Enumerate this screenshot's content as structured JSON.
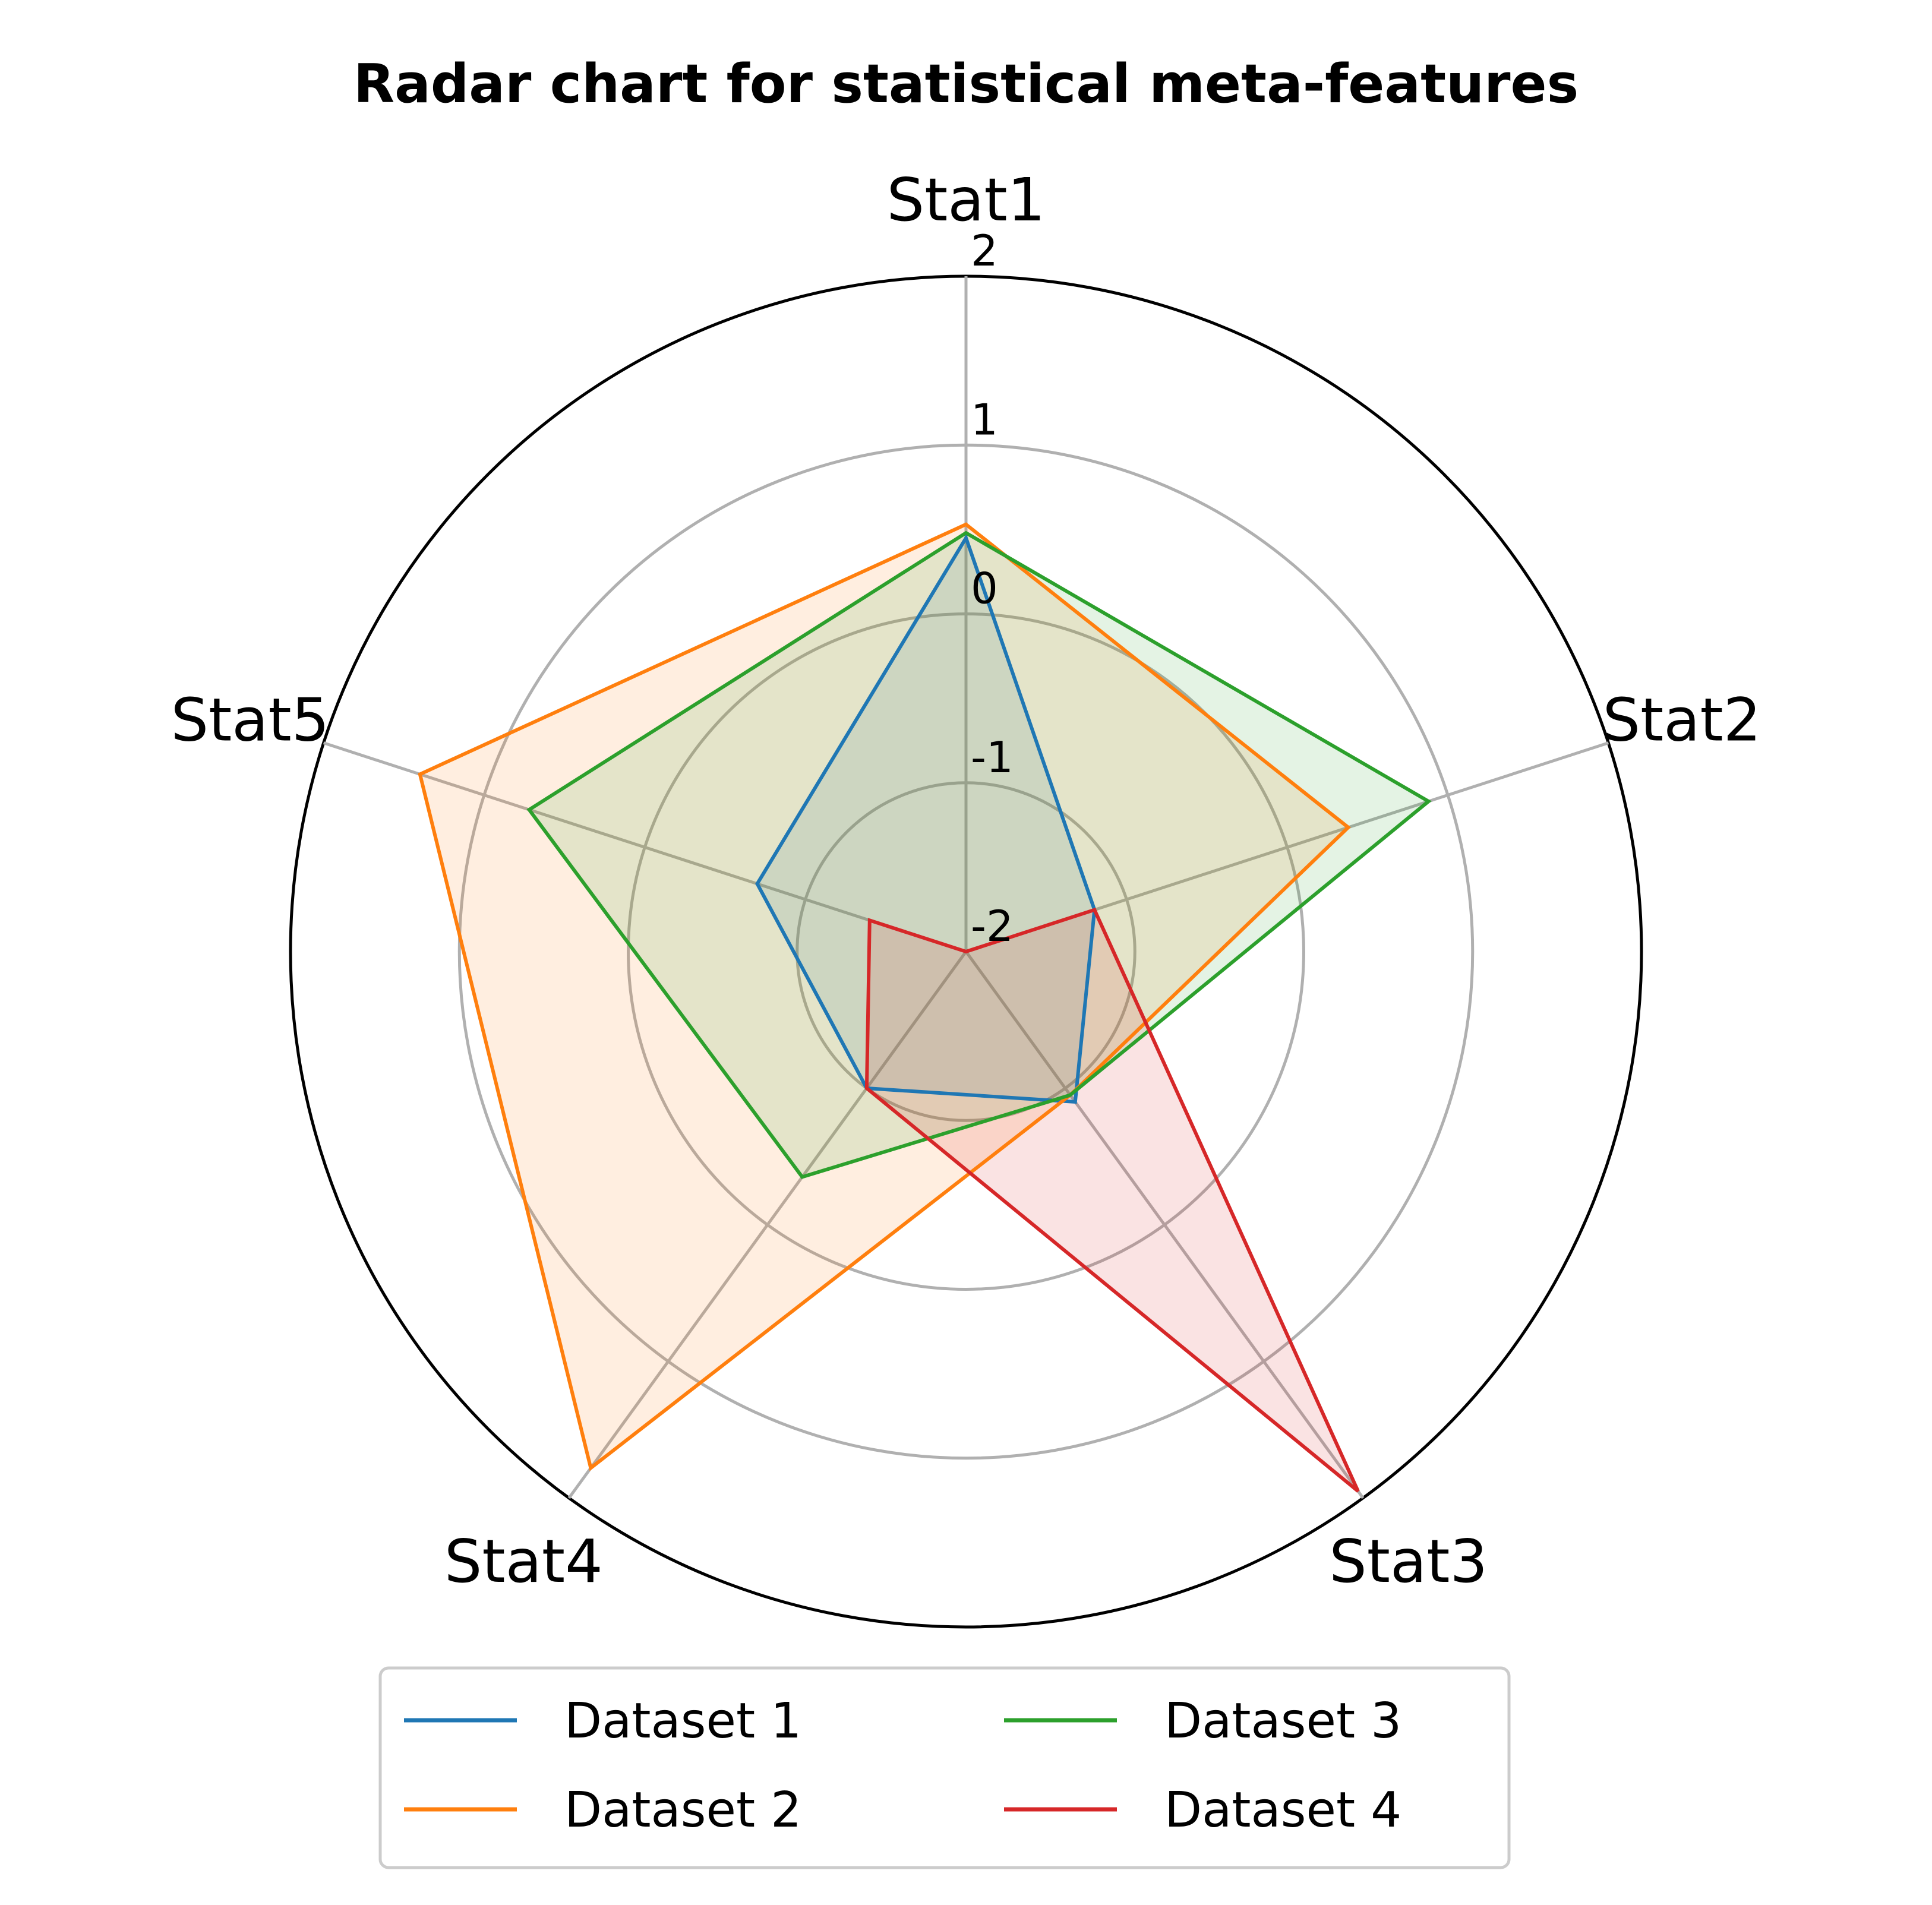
{
  "chart_data": {
    "type": "radar",
    "title": "Radar chart for statistical meta-features",
    "axes": [
      "Stat1",
      "Stat2",
      "Stat3",
      "Stat4",
      "Stat5"
    ],
    "rlim": [
      -2.0,
      2.0
    ],
    "rticks": [
      -2,
      -1,
      0,
      1,
      2
    ],
    "rtick_labels": [
      "-2",
      "-1",
      "0",
      "1",
      "2"
    ],
    "grid": true,
    "legend_position": "bottom-center",
    "legend_columns": 2,
    "series": [
      {
        "name": "Dataset 1",
        "color": "#1f77b4",
        "values": [
          0.45,
          -1.2,
          -0.9,
          -1.0,
          -0.7
        ]
      },
      {
        "name": "Dataset 2",
        "color": "#ff7f0e",
        "values": [
          0.53,
          0.38,
          -0.95,
          1.78,
          1.4
        ]
      },
      {
        "name": "Dataset 3",
        "color": "#2ca02c",
        "values": [
          0.48,
          0.88,
          -0.95,
          -0.35,
          0.72
        ]
      },
      {
        "name": "Dataset 4",
        "color": "#d62728",
        "values": [
          -2.0,
          -1.2,
          1.95,
          -1.0,
          -1.4
        ]
      }
    ]
  }
}
